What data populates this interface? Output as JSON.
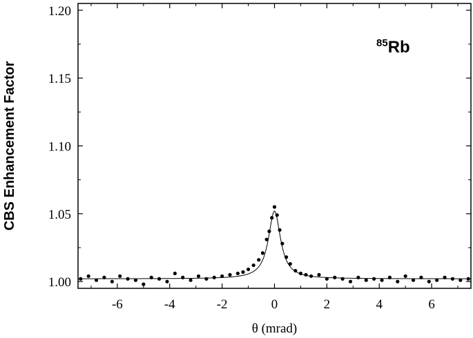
{
  "chart_data": {
    "type": "scatter",
    "xlabel": "θ (mrad)",
    "ylabel": "CBS Enhancement Factor",
    "xlim": [
      -7.5,
      7.5
    ],
    "ylim": [
      0.995,
      1.205
    ],
    "xticks": [
      -6,
      -4,
      -2,
      0,
      2,
      4,
      6
    ],
    "xtick_labels": [
      "-6",
      "-4",
      "-2",
      "0",
      "2",
      "4",
      "6"
    ],
    "yticks": [
      1.0,
      1.05,
      1.1,
      1.15,
      1.2
    ],
    "ytick_labels": [
      "1.00",
      "1.05",
      "1.10",
      "1.15",
      "1.20"
    ],
    "grid": false,
    "annotation": {
      "superscript": "85",
      "text": "Rb"
    },
    "fit": {
      "baseline": 1.002,
      "amplitude": 0.05,
      "width_mrad": 0.28
    },
    "series": [
      {
        "x": [
          -7.4,
          -7.1,
          -6.8,
          -6.5,
          -6.2,
          -5.9,
          -5.6,
          -5.3,
          -5.0,
          -4.7,
          -4.4,
          -4.1,
          -3.8,
          -3.5,
          -3.2,
          -2.9,
          -2.6,
          -2.3,
          -2.0,
          -1.7,
          -1.4,
          -1.2,
          -1.0,
          -0.8,
          -0.6,
          -0.45,
          -0.3,
          -0.2,
          -0.1,
          0.0,
          0.1,
          0.2,
          0.3,
          0.45,
          0.6,
          0.8,
          1.0,
          1.2,
          1.4,
          1.7,
          2.0,
          2.3,
          2.6,
          2.9,
          3.2,
          3.5,
          3.8,
          4.1,
          4.4,
          4.7,
          5.0,
          5.3,
          5.6,
          5.9,
          6.2,
          6.5,
          6.8,
          7.1,
          7.4
        ],
        "y": [
          1.002,
          1.004,
          1.001,
          1.003,
          1.0,
          1.004,
          1.002,
          1.001,
          0.998,
          1.003,
          1.002,
          1.0,
          1.006,
          1.003,
          1.001,
          1.004,
          1.002,
          1.003,
          1.004,
          1.005,
          1.006,
          1.007,
          1.009,
          1.012,
          1.016,
          1.021,
          1.031,
          1.037,
          1.047,
          1.055,
          1.049,
          1.038,
          1.028,
          1.018,
          1.013,
          1.008,
          1.006,
          1.005,
          1.004,
          1.005,
          1.002,
          1.003,
          1.002,
          1.0,
          1.003,
          1.001,
          1.002,
          1.001,
          1.003,
          1.0,
          1.004,
          1.001,
          1.003,
          1.0,
          1.001,
          1.003,
          1.002,
          1.001,
          1.002
        ]
      }
    ]
  }
}
